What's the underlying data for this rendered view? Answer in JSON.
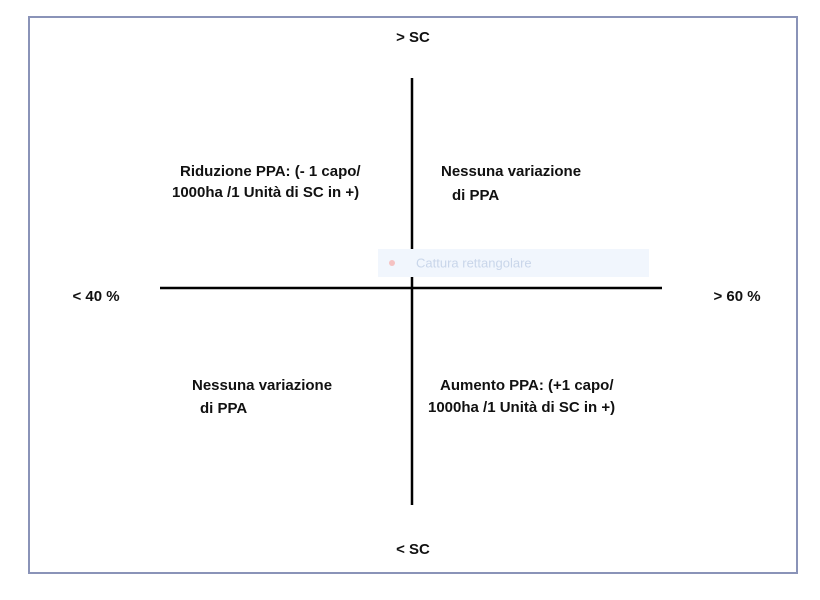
{
  "axes": {
    "top": "> SC",
    "bottom": "<  SC",
    "left": "< 40 %",
    "right": "> 60 %"
  },
  "quadrants": {
    "top_left": [
      "Riduzione PPA:  (- 1 capo/",
      "1000ha /1 Unità di SC in +)"
    ],
    "top_right": [
      "Nessuna variazione",
      "di PPA"
    ],
    "bottom_left": [
      "Nessuna variazione",
      "di PPA"
    ],
    "bottom_right": [
      "Aumento PPA:  (+1 capo/",
      "1000ha /1 Unità di SC in +)"
    ]
  },
  "overlay": "Cattura rettangolare"
}
